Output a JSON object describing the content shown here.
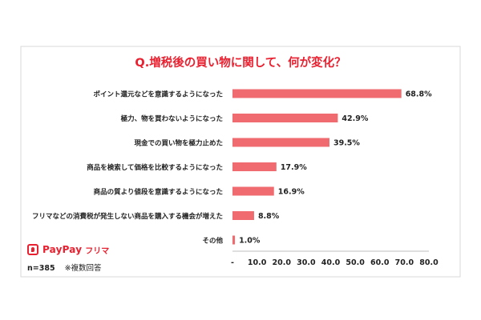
{
  "chart_data": {
    "type": "bar",
    "orientation": "horizontal",
    "title": "Q.増税後の買い物に関して、何が変化？",
    "categories": [
      "ポイント還元などを意識するようになった",
      "極力、物を買わないようになった",
      "現金での買い物を極力止めた",
      "商品を検索して価格を比較するようになった",
      "商品の質より値段を意識するようになった",
      "フリマなどの消費税が発生しない商品を購入する機会が増えた",
      "その他"
    ],
    "values": [
      68.8,
      42.9,
      39.5,
      17.9,
      16.9,
      8.8,
      1.0
    ],
    "data_labels": [
      "68.8%",
      "42.9%",
      "39.5%",
      "17.9%",
      "16.9%",
      "8.8%",
      "1.0%"
    ],
    "xlim": [
      0,
      80
    ],
    "xticks": [
      "-",
      "10.0",
      "20.0",
      "30.0",
      "40.0",
      "50.0",
      "60.0",
      "70.0",
      "80.0"
    ],
    "grid": false,
    "legend": "none",
    "bar_color": "#f06b6f",
    "title_color": "#e9202f"
  },
  "brand": {
    "name": "PayPay",
    "sub": "フリマ"
  },
  "note": {
    "n": "n=385",
    "multi": "※複数回答"
  }
}
